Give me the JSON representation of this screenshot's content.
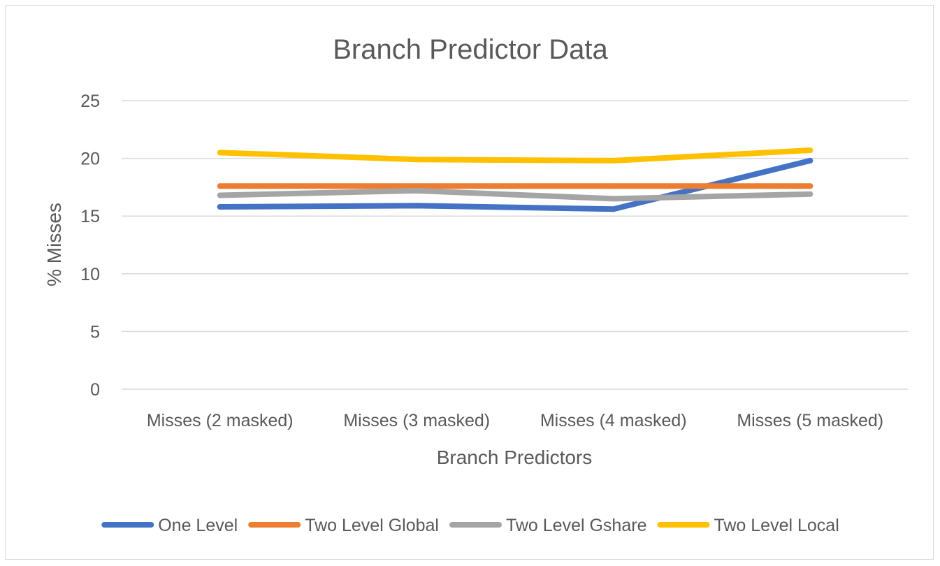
{
  "chart_data": {
    "type": "line",
    "title": "Branch Predictor Data",
    "xlabel": "Branch Predictors",
    "ylabel": "% Misses",
    "categories": [
      "Misses (2 masked)",
      "Misses (3 masked)",
      "Misses (4 masked)",
      "Misses (5 masked)"
    ],
    "ylim": [
      0,
      25
    ],
    "yticks": [
      0,
      5,
      10,
      15,
      20,
      25
    ],
    "grid": true,
    "legend_position": "bottom",
    "series": [
      {
        "name": "One Level",
        "color": "#4472C4",
        "values": [
          15.8,
          15.9,
          15.6,
          19.8
        ]
      },
      {
        "name": "Two Level Global",
        "color": "#ED7D31",
        "values": [
          17.6,
          17.6,
          17.6,
          17.6
        ]
      },
      {
        "name": "Two Level Gshare",
        "color": "#A5A5A5",
        "values": [
          16.8,
          17.2,
          16.5,
          16.9
        ]
      },
      {
        "name": "Two Level Local",
        "color": "#FFC000",
        "values": [
          20.5,
          19.9,
          19.8,
          20.7
        ]
      }
    ]
  }
}
